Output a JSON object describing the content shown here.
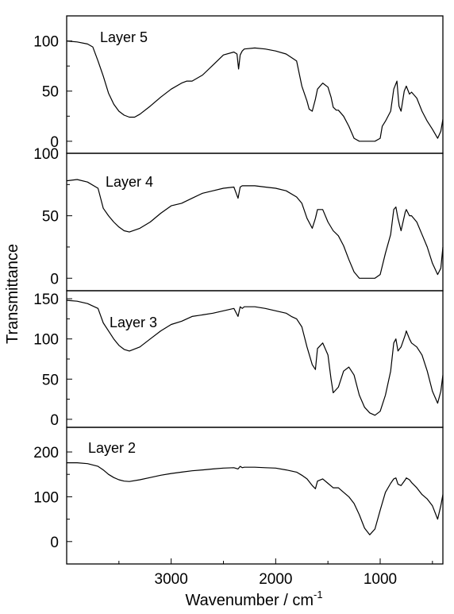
{
  "figure": {
    "ylabel": "Transmittance",
    "xlabel_main": "Wavenumber / cm",
    "xlabel_sup": "-1"
  },
  "chart_data": [
    {
      "type": "line",
      "title": "Layer 5",
      "xlabel": "Wavenumber / cm-1",
      "ylabel": "Transmittance",
      "xlim": [
        4000,
        400
      ],
      "ylim": [
        -12,
        125
      ],
      "xticks": [
        3000,
        2000,
        1000
      ],
      "yticks": [
        0,
        50,
        100
      ],
      "ytick_labels": [
        "0",
        "50",
        "100"
      ],
      "series": [
        {
          "x": [
            4000,
            3900,
            3800,
            3750,
            3700,
            3650,
            3600,
            3550,
            3500,
            3450,
            3400,
            3350,
            3300,
            3200,
            3100,
            3000,
            2900,
            2850,
            2800,
            2700,
            2600,
            2500,
            2400,
            2370,
            2355,
            2340,
            2320,
            2300,
            2200,
            2100,
            2000,
            1900,
            1800,
            1750,
            1700,
            1680,
            1650,
            1620,
            1600,
            1550,
            1500,
            1470,
            1450,
            1420,
            1400,
            1350,
            1300,
            1250,
            1200,
            1150,
            1100,
            1050,
            1000,
            980,
            950,
            900,
            870,
            840,
            820,
            800,
            770,
            750,
            720,
            700,
            650,
            600,
            550,
            500,
            450,
            420,
            400
          ],
          "y": [
            100,
            99,
            97,
            94,
            80,
            65,
            48,
            37,
            30,
            26,
            24,
            24,
            27,
            35,
            44,
            52,
            58,
            60,
            60,
            66,
            76,
            86,
            89,
            87,
            72,
            86,
            90,
            92,
            93,
            92,
            90,
            87,
            80,
            55,
            40,
            32,
            30,
            42,
            52,
            58,
            54,
            44,
            34,
            31,
            31,
            25,
            15,
            3,
            0,
            0,
            0,
            0,
            3,
            15,
            20,
            30,
            52,
            60,
            35,
            30,
            50,
            55,
            47,
            49,
            43,
            30,
            20,
            12,
            3,
            10,
            22
          ]
        }
      ]
    },
    {
      "type": "line",
      "title": "Layer 4",
      "xlabel": "Wavenumber / cm-1",
      "ylabel": "Transmittance",
      "xlim": [
        4000,
        400
      ],
      "ylim": [
        -10,
        100
      ],
      "xticks": [
        3000,
        2000,
        1000
      ],
      "yticks": [
        0,
        50,
        100
      ],
      "ytick_labels": [
        "0",
        "50",
        "100"
      ],
      "series": [
        {
          "x": [
            4000,
            3900,
            3800,
            3700,
            3650,
            3600,
            3550,
            3500,
            3450,
            3400,
            3300,
            3200,
            3100,
            3000,
            2900,
            2800,
            2700,
            2600,
            2500,
            2400,
            2360,
            2340,
            2320,
            2300,
            2200,
            2100,
            2000,
            1900,
            1800,
            1750,
            1700,
            1650,
            1620,
            1600,
            1550,
            1500,
            1450,
            1400,
            1350,
            1300,
            1250,
            1200,
            1150,
            1100,
            1050,
            1000,
            950,
            900,
            870,
            850,
            830,
            800,
            760,
            750,
            720,
            700,
            650,
            600,
            550,
            500,
            450,
            420,
            400
          ],
          "y": [
            78,
            79,
            77,
            72,
            56,
            50,
            45,
            41,
            38,
            37,
            40,
            45,
            52,
            58,
            60,
            64,
            68,
            70,
            72,
            73,
            64,
            73,
            74,
            74,
            74,
            73,
            72,
            70,
            65,
            60,
            48,
            40,
            48,
            55,
            55,
            45,
            38,
            34,
            26,
            15,
            5,
            0,
            0,
            0,
            0,
            3,
            20,
            35,
            55,
            57,
            48,
            38,
            53,
            55,
            50,
            50,
            45,
            35,
            25,
            12,
            3,
            8,
            25
          ]
        }
      ]
    },
    {
      "type": "line",
      "title": "Layer 3",
      "xlabel": "Wavenumber / cm-1",
      "ylabel": "Transmittance",
      "xlim": [
        4000,
        400
      ],
      "ylim": [
        -10,
        160
      ],
      "xticks": [
        3000,
        2000,
        1000
      ],
      "yticks": [
        0,
        50,
        100,
        150
      ],
      "ytick_labels": [
        "0",
        "50",
        "100",
        "150"
      ],
      "series": [
        {
          "x": [
            4000,
            3900,
            3800,
            3700,
            3650,
            3600,
            3550,
            3500,
            3450,
            3400,
            3300,
            3200,
            3100,
            3000,
            2900,
            2800,
            2700,
            2600,
            2500,
            2400,
            2360,
            2340,
            2320,
            2300,
            2200,
            2100,
            2000,
            1900,
            1850,
            1800,
            1750,
            1700,
            1650,
            1620,
            1600,
            1550,
            1500,
            1470,
            1450,
            1400,
            1350,
            1300,
            1250,
            1200,
            1150,
            1100,
            1050,
            1000,
            950,
            900,
            870,
            850,
            830,
            800,
            760,
            750,
            720,
            700,
            650,
            600,
            550,
            500,
            450,
            420,
            400
          ],
          "y": [
            148,
            147,
            144,
            138,
            120,
            110,
            100,
            92,
            87,
            85,
            90,
            100,
            110,
            118,
            122,
            128,
            130,
            132,
            135,
            138,
            128,
            140,
            138,
            140,
            140,
            138,
            135,
            132,
            128,
            125,
            115,
            90,
            68,
            62,
            88,
            95,
            80,
            50,
            33,
            40,
            60,
            65,
            55,
            30,
            15,
            8,
            5,
            10,
            30,
            60,
            95,
            100,
            85,
            90,
            105,
            110,
            100,
            95,
            90,
            80,
            60,
            35,
            20,
            35,
            55
          ]
        }
      ]
    },
    {
      "type": "line",
      "title": "Layer 2",
      "xlabel": "Wavenumber / cm-1",
      "ylabel": "Transmittance",
      "xlim": [
        4000,
        400
      ],
      "ylim": [
        -50,
        255
      ],
      "xticks": [
        3000,
        2000,
        1000
      ],
      "yticks": [
        0,
        100,
        200
      ],
      "ytick_labels": [
        "0",
        "100",
        "200"
      ],
      "series": [
        {
          "x": [
            4000,
            3900,
            3800,
            3700,
            3650,
            3600,
            3550,
            3500,
            3450,
            3400,
            3300,
            3200,
            3100,
            3000,
            2900,
            2800,
            2700,
            2600,
            2500,
            2400,
            2360,
            2340,
            2320,
            2300,
            2200,
            2100,
            2000,
            1900,
            1800,
            1750,
            1700,
            1650,
            1620,
            1600,
            1550,
            1500,
            1450,
            1400,
            1350,
            1300,
            1250,
            1200,
            1150,
            1100,
            1050,
            1000,
            950,
            900,
            870,
            850,
            830,
            800,
            760,
            750,
            720,
            700,
            650,
            600,
            550,
            500,
            450,
            420,
            400
          ],
          "y": [
            176,
            176,
            174,
            168,
            160,
            150,
            143,
            138,
            135,
            134,
            138,
            143,
            148,
            152,
            155,
            158,
            160,
            162,
            164,
            165,
            162,
            168,
            165,
            166,
            166,
            165,
            164,
            160,
            155,
            148,
            140,
            125,
            118,
            135,
            140,
            130,
            120,
            120,
            110,
            100,
            85,
            60,
            30,
            15,
            28,
            70,
            110,
            130,
            140,
            142,
            128,
            125,
            138,
            142,
            138,
            132,
            120,
            105,
            95,
            80,
            50,
            80,
            105
          ]
        }
      ]
    }
  ]
}
